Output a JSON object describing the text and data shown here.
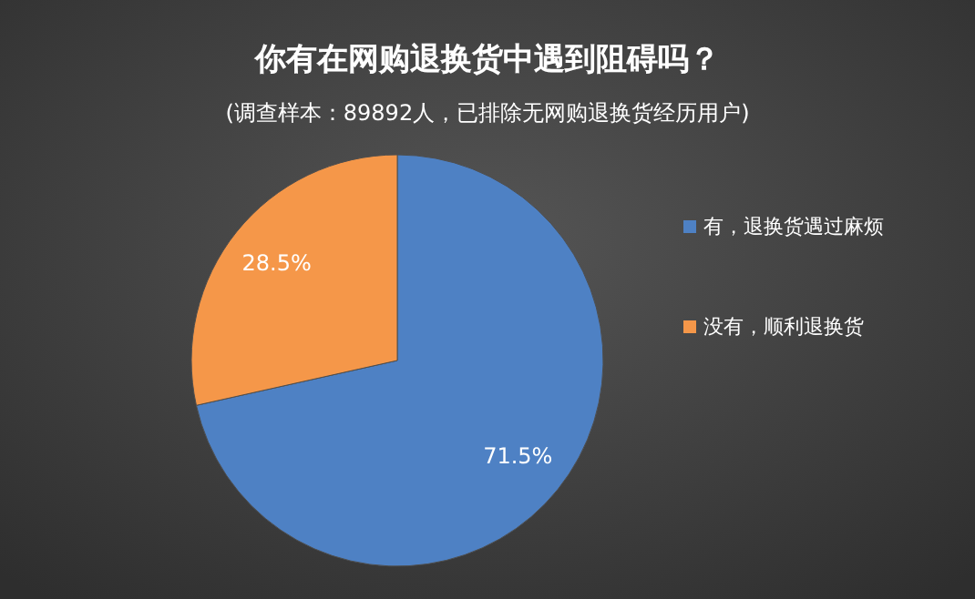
{
  "chart_data": {
    "type": "pie",
    "title": "你有在网购退换货中遇到阻碍吗？",
    "subtitle": "(调查样本：89892人，已排除无网购退换货经历用户)",
    "categories": [
      "有，退换货遇过麻烦",
      "没有，顺利退换货"
    ],
    "values": [
      71.5,
      28.5
    ],
    "colors": [
      "#4e81c4",
      "#f59749"
    ],
    "value_labels": [
      "71.5%",
      "28.5%"
    ],
    "legend": "right"
  }
}
